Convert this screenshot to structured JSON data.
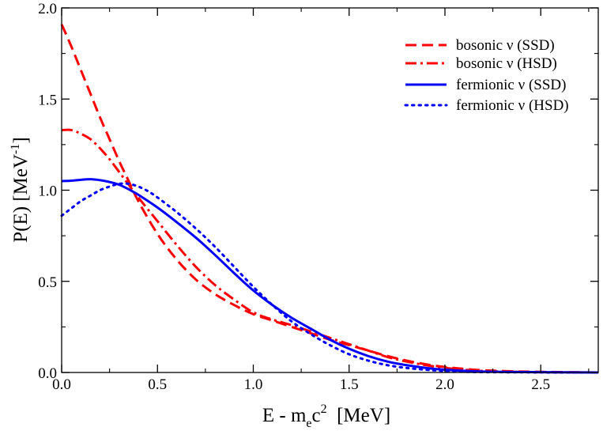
{
  "chart_data": {
    "type": "line",
    "title": "",
    "xlabel": {
      "main": "E - m",
      "sub": "e",
      "post": "c",
      "sup": "2",
      "unit": "  [MeV]"
    },
    "ylabel": {
      "main": "P(E) [MeV",
      "sup": "-1",
      "post": "]"
    },
    "xlim": [
      0.0,
      2.8
    ],
    "ylim": [
      0.0,
      2.0
    ],
    "x_ticks": [
      0.0,
      0.5,
      1.0,
      1.5,
      2.0,
      2.5
    ],
    "x_tick_labels": [
      "0.0",
      "0.5",
      "1.0",
      "1.5",
      "2.0",
      "2.5"
    ],
    "y_ticks": [
      0.0,
      0.5,
      1.0,
      1.5,
      2.0
    ],
    "y_tick_labels": [
      "0.0",
      "0.5",
      "1.0",
      "1.5",
      "2.0"
    ],
    "grid": false,
    "legend_position": "top-right",
    "series": [
      {
        "name": "bosonic ν (SSD)",
        "color": "#ff0000",
        "style": "dashed",
        "x": [
          0.0,
          0.05,
          0.1,
          0.15,
          0.2,
          0.25,
          0.3,
          0.35,
          0.4,
          0.5,
          0.6,
          0.7,
          0.8,
          0.9,
          1.0,
          1.1,
          1.2,
          1.3,
          1.4,
          1.5,
          1.6,
          1.7,
          1.8,
          1.9,
          2.0,
          2.1,
          2.2,
          2.4,
          2.6,
          2.8
        ],
        "y": [
          1.91,
          1.79,
          1.66,
          1.53,
          1.4,
          1.28,
          1.16,
          1.05,
          0.94,
          0.76,
          0.62,
          0.51,
          0.43,
          0.37,
          0.32,
          0.285,
          0.25,
          0.215,
          0.18,
          0.15,
          0.12,
          0.09,
          0.065,
          0.045,
          0.03,
          0.02,
          0.012,
          0.005,
          0.002,
          0.0
        ]
      },
      {
        "name": "bosonic ν (HSD)",
        "color": "#ff0000",
        "style": "dashdot",
        "x": [
          0.0,
          0.05,
          0.1,
          0.15,
          0.2,
          0.25,
          0.3,
          0.35,
          0.4,
          0.5,
          0.6,
          0.7,
          0.8,
          0.9,
          1.0,
          1.1,
          1.2,
          1.3,
          1.4,
          1.5,
          1.6,
          1.7,
          1.8,
          1.9,
          2.0,
          2.1,
          2.2,
          2.4,
          2.6,
          2.8
        ],
        "y": [
          1.33,
          1.33,
          1.31,
          1.28,
          1.23,
          1.17,
          1.1,
          1.03,
          0.96,
          0.83,
          0.7,
          0.58,
          0.48,
          0.4,
          0.33,
          0.29,
          0.26,
          0.225,
          0.19,
          0.155,
          0.12,
          0.085,
          0.06,
          0.04,
          0.025,
          0.015,
          0.008,
          0.003,
          0.001,
          0.0
        ]
      },
      {
        "name": "fermionic ν (SSD)",
        "color": "#0000ff",
        "style": "solid",
        "x": [
          0.0,
          0.05,
          0.1,
          0.15,
          0.2,
          0.25,
          0.3,
          0.35,
          0.4,
          0.5,
          0.6,
          0.7,
          0.8,
          0.9,
          1.0,
          1.1,
          1.2,
          1.3,
          1.4,
          1.5,
          1.6,
          1.7,
          1.8,
          1.9,
          2.0,
          2.1,
          2.2,
          2.4,
          2.6,
          2.8
        ],
        "y": [
          1.05,
          1.052,
          1.057,
          1.06,
          1.055,
          1.045,
          1.03,
          1.005,
          0.975,
          0.905,
          0.825,
          0.74,
          0.645,
          0.545,
          0.45,
          0.37,
          0.3,
          0.24,
          0.18,
          0.13,
          0.09,
          0.06,
          0.04,
          0.025,
          0.015,
          0.009,
          0.005,
          0.002,
          0.001,
          0.0
        ]
      },
      {
        "name": "fermionic ν (HSD)",
        "color": "#0000ff",
        "style": "dotted",
        "x": [
          0.0,
          0.05,
          0.1,
          0.15,
          0.2,
          0.25,
          0.3,
          0.35,
          0.4,
          0.45,
          0.5,
          0.6,
          0.7,
          0.8,
          0.9,
          1.0,
          1.1,
          1.2,
          1.3,
          1.4,
          1.5,
          1.6,
          1.7,
          1.8,
          1.9,
          2.0,
          2.1,
          2.2,
          2.4,
          2.6,
          2.8
        ],
        "y": [
          0.86,
          0.9,
          0.94,
          0.97,
          1.0,
          1.02,
          1.035,
          1.035,
          1.02,
          0.995,
          0.96,
          0.88,
          0.79,
          0.69,
          0.58,
          0.47,
          0.37,
          0.28,
          0.21,
          0.15,
          0.1,
          0.065,
          0.04,
          0.025,
          0.015,
          0.008,
          0.004,
          0.002,
          0.001,
          0.0,
          0.0
        ]
      }
    ]
  }
}
